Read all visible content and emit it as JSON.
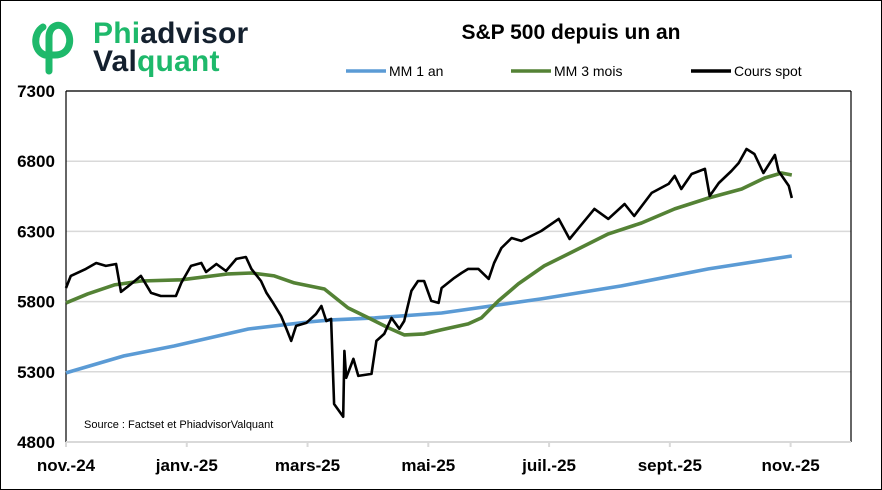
{
  "logo": {
    "line1": {
      "part1": "Phi",
      "part2": "advisor"
    },
    "line2": {
      "part1": "Val",
      "part2": "quant"
    },
    "text": "PhiadvisorValquant"
  },
  "colors": {
    "brand_green": "#1EB96B",
    "brand_dark": "#14202E",
    "mm1an": "#5B9BD5",
    "mm3mois": "#548235",
    "spot": "#000000",
    "grid": "#D9D9D9"
  },
  "chart_data": {
    "type": "line",
    "title": "S&P 500 depuis un an",
    "xlabel": "",
    "ylabel": "",
    "x_unit": "months since nov.-24",
    "xlim": [
      0,
      13
    ],
    "ylim": [
      4800,
      7300
    ],
    "yticks": [
      "4800",
      "5300",
      "5800",
      "6300",
      "6800",
      "7300"
    ],
    "ytick_values": [
      4800,
      5300,
      5800,
      6300,
      6800,
      7300
    ],
    "xticks": [
      "nov.-24",
      "janv.-25",
      "mars-25",
      "mai-25",
      "juil.-25",
      "sept.-25",
      "nov.-25"
    ],
    "xtick_values": [
      0,
      2,
      4,
      6,
      8,
      10,
      12
    ],
    "grid": true,
    "legend_position": "top",
    "annotation": "Source : Factset et PhiadvisorValquant",
    "series": [
      {
        "name": "MM 1 an",
        "color": "#5B9BD5",
        "points": [
          [
            0,
            5292
          ],
          [
            0.96,
            5413
          ],
          [
            1.79,
            5484
          ],
          [
            3.02,
            5605
          ],
          [
            4.01,
            5655
          ],
          [
            4.39,
            5670
          ],
          [
            5.11,
            5684
          ],
          [
            6.22,
            5719
          ],
          [
            7.87,
            5819
          ],
          [
            9.2,
            5912
          ],
          [
            10.64,
            6033
          ],
          [
            12.02,
            6125
          ]
        ]
      },
      {
        "name": "MM 3 mois",
        "color": "#548235",
        "points": [
          [
            0,
            5791
          ],
          [
            0.36,
            5855
          ],
          [
            0.8,
            5919
          ],
          [
            1.24,
            5947
          ],
          [
            1.91,
            5955
          ],
          [
            2.69,
            5997
          ],
          [
            3.07,
            6004
          ],
          [
            3.45,
            5983
          ],
          [
            3.78,
            5933
          ],
          [
            4.28,
            5890
          ],
          [
            4.67,
            5755
          ],
          [
            5.01,
            5684
          ],
          [
            5.34,
            5613
          ],
          [
            5.6,
            5563
          ],
          [
            5.93,
            5570
          ],
          [
            6.22,
            5599
          ],
          [
            6.66,
            5641
          ],
          [
            6.88,
            5684
          ],
          [
            7.16,
            5805
          ],
          [
            7.49,
            5926
          ],
          [
            7.92,
            6054
          ],
          [
            8.42,
            6161
          ],
          [
            8.98,
            6282
          ],
          [
            9.53,
            6360
          ],
          [
            10.08,
            6460
          ],
          [
            10.64,
            6538
          ],
          [
            11.19,
            6602
          ],
          [
            11.57,
            6680
          ],
          [
            11.85,
            6716
          ],
          [
            12.02,
            6702
          ]
        ]
      },
      {
        "name": "Cours spot",
        "color": "#000000",
        "points": [
          [
            0,
            5897
          ],
          [
            0.08,
            5983
          ],
          [
            0.33,
            6033
          ],
          [
            0.5,
            6075
          ],
          [
            0.66,
            6054
          ],
          [
            0.83,
            6068
          ],
          [
            0.91,
            5869
          ],
          [
            1.08,
            5926
          ],
          [
            1.24,
            5983
          ],
          [
            1.41,
            5862
          ],
          [
            1.57,
            5840
          ],
          [
            1.82,
            5840
          ],
          [
            1.91,
            5933
          ],
          [
            2.07,
            6054
          ],
          [
            2.24,
            6075
          ],
          [
            2.32,
            6011
          ],
          [
            2.49,
            6068
          ],
          [
            2.65,
            6018
          ],
          [
            2.82,
            6104
          ],
          [
            2.98,
            6118
          ],
          [
            3.07,
            6033
          ],
          [
            3.23,
            5947
          ],
          [
            3.32,
            5862
          ],
          [
            3.43,
            5791
          ],
          [
            3.56,
            5698
          ],
          [
            3.65,
            5606
          ],
          [
            3.73,
            5520
          ],
          [
            3.81,
            5627
          ],
          [
            3.98,
            5648
          ],
          [
            4.14,
            5712
          ],
          [
            4.23,
            5769
          ],
          [
            4.31,
            5662
          ],
          [
            4.39,
            5677
          ],
          [
            4.44,
            5071
          ],
          [
            4.59,
            4980
          ],
          [
            4.61,
            5449
          ],
          [
            4.64,
            5257
          ],
          [
            4.76,
            5392
          ],
          [
            4.84,
            5271
          ],
          [
            5.06,
            5285
          ],
          [
            5.14,
            5520
          ],
          [
            5.27,
            5570
          ],
          [
            5.39,
            5684
          ],
          [
            5.52,
            5606
          ],
          [
            5.6,
            5662
          ],
          [
            5.72,
            5876
          ],
          [
            5.83,
            5947
          ],
          [
            5.93,
            5947
          ],
          [
            6.05,
            5805
          ],
          [
            6.17,
            5791
          ],
          [
            6.22,
            5897
          ],
          [
            6.43,
            5969
          ],
          [
            6.55,
            6004
          ],
          [
            6.66,
            6033
          ],
          [
            6.83,
            6033
          ],
          [
            7.0,
            5962
          ],
          [
            7.09,
            6075
          ],
          [
            7.21,
            6182
          ],
          [
            7.38,
            6253
          ],
          [
            7.54,
            6232
          ],
          [
            7.87,
            6303
          ],
          [
            8.16,
            6389
          ],
          [
            8.34,
            6246
          ],
          [
            8.49,
            6325
          ],
          [
            8.75,
            6460
          ],
          [
            8.98,
            6389
          ],
          [
            9.25,
            6495
          ],
          [
            9.41,
            6410
          ],
          [
            9.7,
            6574
          ],
          [
            9.98,
            6638
          ],
          [
            10.08,
            6695
          ],
          [
            10.19,
            6602
          ],
          [
            10.36,
            6709
          ],
          [
            10.58,
            6745
          ],
          [
            10.66,
            6552
          ],
          [
            10.81,
            6645
          ],
          [
            11.02,
            6730
          ],
          [
            11.14,
            6787
          ],
          [
            11.27,
            6887
          ],
          [
            11.4,
            6851
          ],
          [
            11.55,
            6716
          ],
          [
            11.74,
            6844
          ],
          [
            11.8,
            6730
          ],
          [
            11.97,
            6624
          ],
          [
            12.02,
            6538
          ]
        ]
      }
    ]
  }
}
